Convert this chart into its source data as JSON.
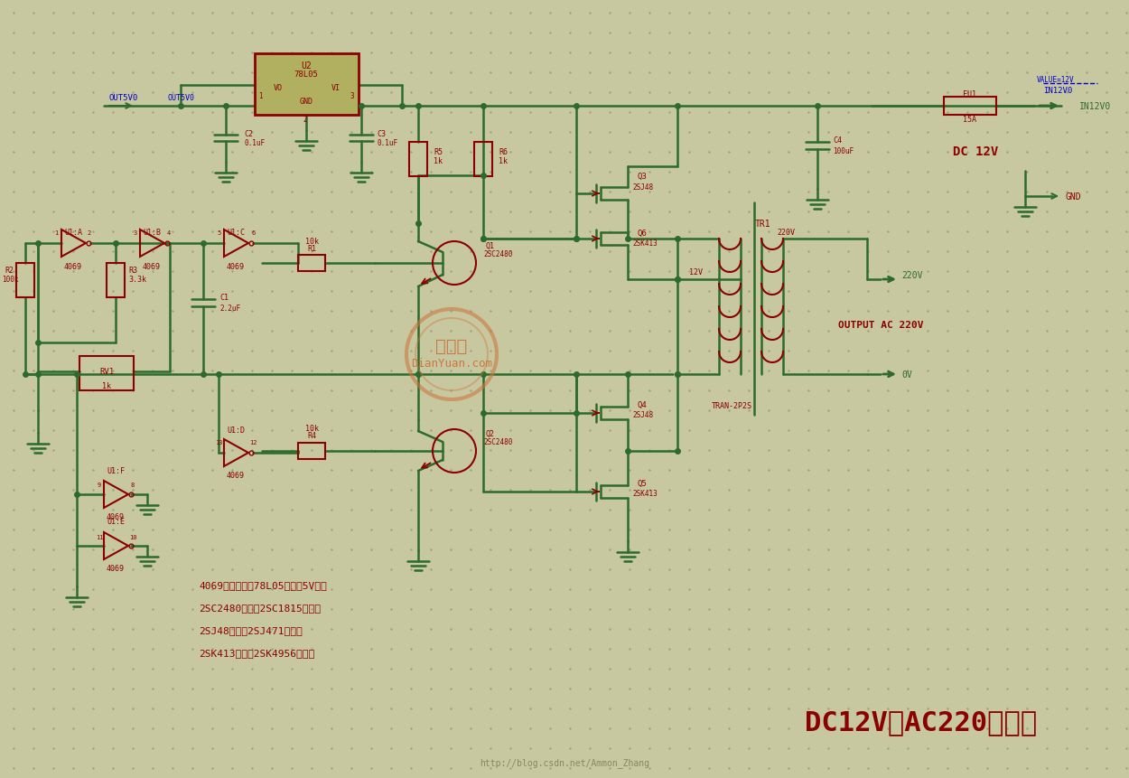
{
  "bg_color": "#c8c8a0",
  "dot_color": "#a0a080",
  "wire_color": "#2d6b2d",
  "component_color": "#8b0000",
  "label_color": "#8b0000",
  "blue_color": "#0000cc",
  "title": "DC12V到AC220逆变器",
  "title_color": "#8b0000",
  "watermark": "http://blog.csdn.net/Ammon_Zhang",
  "note1": "4069的电源使用78L05输出的5V供电",
  "note2": "2SC2480可以用2SC1815来代替",
  "note3": "2SJ48可以用2SJ471来代替",
  "note4": "2SK413可以用2SK4956来代替",
  "dianyuan_text": "电源网",
  "dianyuan_url": "DianYuan.com",
  "output_text": "OUTPUT AC 220V",
  "dc12v_text": "DC 12V",
  "in12v0_text": "IN12V0",
  "out5v0_text": "OUT5V0"
}
